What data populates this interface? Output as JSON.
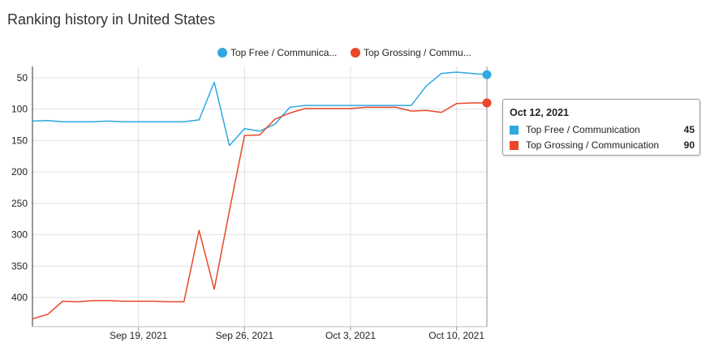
{
  "page": {
    "title": "Ranking history in United States"
  },
  "colors": {
    "free": "#2ea8e0",
    "grossing": "#e8472a",
    "grid": "#e0e0e0",
    "axis": "#333333"
  },
  "tooltip": {
    "date": "Oct 12, 2021",
    "rows": [
      {
        "name": "Top Free / Communication",
        "value": "45"
      },
      {
        "name": "Top Grossing / Communication",
        "value": "90"
      }
    ]
  },
  "chart_data": {
    "type": "line",
    "title": "Ranking history in United States",
    "xlabel": "",
    "ylabel": "",
    "y_reversed": true,
    "ylim": [
      440,
      30
    ],
    "y_ticks": [
      "50",
      "100",
      "150",
      "200",
      "250",
      "300",
      "350",
      "400"
    ],
    "x_ticks": [
      "Sep 19, 2021",
      "Sep 26, 2021",
      "Oct 3, 2021",
      "Oct 10, 2021"
    ],
    "x": [
      "Sep 12",
      "Sep 13",
      "Sep 14",
      "Sep 15",
      "Sep 16",
      "Sep 17",
      "Sep 18",
      "Sep 19",
      "Sep 20",
      "Sep 21",
      "Sep 22",
      "Sep 23",
      "Sep 24",
      "Sep 25",
      "Sep 26",
      "Sep 27",
      "Sep 28",
      "Sep 29",
      "Sep 30",
      "Oct 1",
      "Oct 2",
      "Oct 3",
      "Oct 4",
      "Oct 5",
      "Oct 6",
      "Oct 7",
      "Oct 8",
      "Oct 9",
      "Oct 10",
      "Oct 11",
      "Oct 12"
    ],
    "series": [
      {
        "name": "Top Free / Communica...",
        "full_name": "Top Free / Communication",
        "values": [
          119,
          118,
          120,
          120,
          120,
          119,
          120,
          120,
          120,
          120,
          120,
          117,
          57,
          158,
          131,
          135,
          124,
          97,
          94,
          94,
          94,
          94,
          94,
          94,
          94,
          94,
          63,
          43,
          41,
          43,
          45
        ]
      },
      {
        "name": "Top Grossing / Commu...",
        "full_name": "Top Grossing / Communication",
        "values": [
          434,
          427,
          406,
          407,
          405,
          405,
          406,
          406,
          406,
          407,
          407,
          293,
          387,
          262,
          142,
          141,
          116,
          106,
          99,
          99,
          99,
          99,
          97,
          97,
          97,
          103,
          102,
          105,
          91,
          90,
          90
        ]
      }
    ],
    "legend_position": "top-center",
    "grid": true
  }
}
